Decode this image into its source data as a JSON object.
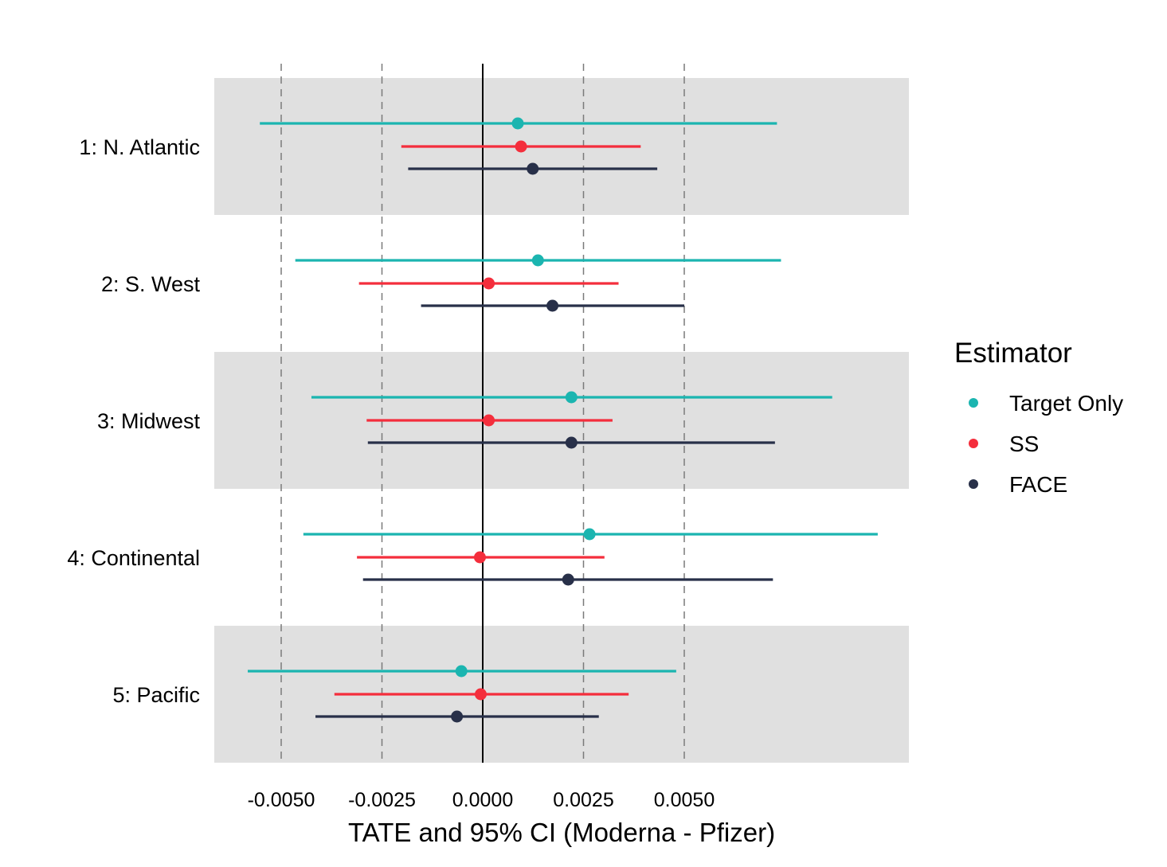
{
  "chart_data": {
    "type": "forest",
    "title": "",
    "xlabel": "TATE and 95% CI (Moderna - Pfizer)",
    "ylabel": "",
    "xlim": [
      -0.0067,
      0.0106
    ],
    "x_ticks": [
      -0.005,
      -0.0025,
      0.0,
      0.0025,
      0.005
    ],
    "x_tick_labels": [
      "-0.0050",
      "-0.0025",
      "0.0000",
      "0.0025",
      "0.0050"
    ],
    "reference_line": 0.0,
    "grid": "dashed vertical at ticks",
    "legend": {
      "title": "Estimator",
      "position": "right",
      "entries": [
        {
          "name": "Target Only",
          "color": "#1bb5b0"
        },
        {
          "name": "SS",
          "color": "#f42e3c"
        },
        {
          "name": "FACE",
          "color": "#283049"
        }
      ]
    },
    "categories": [
      "1: N. Atlantic",
      "2: S. West",
      "3: Midwest",
      "4: Continental",
      "5: Pacific"
    ],
    "series": [
      {
        "name": "Target Only",
        "color": "#1bb5b0",
        "estimates": [
          0.00087,
          0.00137,
          0.0022,
          0.00265,
          -0.00053
        ],
        "lower": [
          -0.00553,
          -0.00465,
          -0.00425,
          -0.00445,
          -0.00583
        ],
        "upper": [
          0.0073,
          0.0074,
          0.00867,
          0.0098,
          0.0048
        ]
      },
      {
        "name": "SS",
        "color": "#f42e3c",
        "estimates": [
          0.00095,
          0.00015,
          0.00015,
          -7e-05,
          -5e-05
        ],
        "lower": [
          -0.00202,
          -0.00307,
          -0.00288,
          -0.00312,
          -0.00368
        ],
        "upper": [
          0.00392,
          0.00337,
          0.00322,
          0.00302,
          0.00362
        ]
      },
      {
        "name": "FACE",
        "color": "#283049",
        "estimates": [
          0.00124,
          0.00173,
          0.0022,
          0.00212,
          -0.00064
        ],
        "lower": [
          -0.00185,
          -0.00153,
          -0.00285,
          -0.00297,
          -0.00415
        ],
        "upper": [
          0.00433,
          0.005,
          0.00725,
          0.0072,
          0.00288
        ]
      }
    ]
  }
}
